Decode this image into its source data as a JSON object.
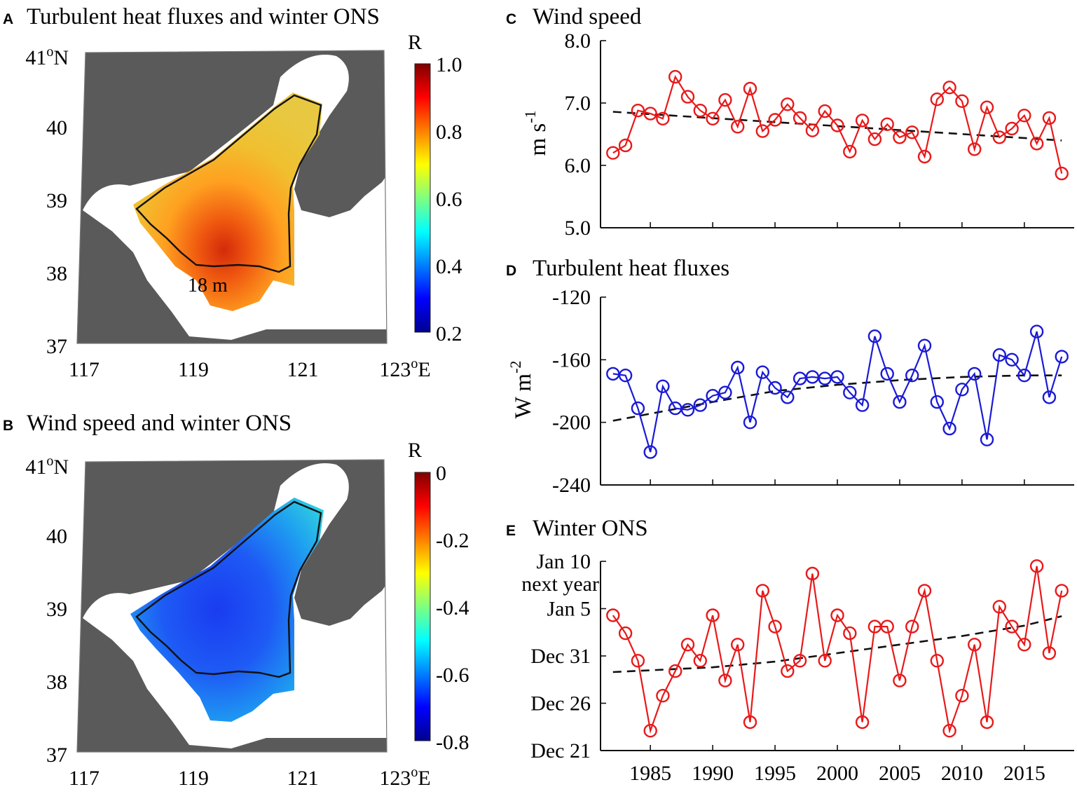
{
  "panels": {
    "A": {
      "letter": "A",
      "title": "Turbulent heat fluxes and winter ONS"
    },
    "B": {
      "letter": "B",
      "title": "Wind speed and winter ONS"
    },
    "C": {
      "letter": "C",
      "title": "Wind speed"
    },
    "D": {
      "letter": "D",
      "title": "Turbulent heat fluxes"
    },
    "E": {
      "letter": "E",
      "title": "Winter ONS"
    }
  },
  "maps": {
    "lon_ticks": [
      "117",
      "119",
      "121",
      "123"
    ],
    "lon_last_deg": "o",
    "lon_last_suffix": "E",
    "lat_ticks": [
      "40",
      "39",
      "38",
      "37"
    ],
    "lat_top": "41",
    "lat_top_deg": "o",
    "lat_top_suffix": "N",
    "contour_label": "18 m",
    "colors": {
      "land": "#5a5a5a",
      "contour": "#111111"
    }
  },
  "colorbars": {
    "A": {
      "label": "R",
      "ticks": [
        "1.0",
        "0.8",
        "0.6",
        "0.4",
        "0.2"
      ]
    },
    "B": {
      "label": "R",
      "ticks": [
        "0",
        "-0.2",
        "-0.4",
        "-0.6",
        "-0.8"
      ]
    }
  },
  "chart_data": [
    {
      "id": "C",
      "type": "line",
      "title": "Wind speed",
      "ylabel": "m s-1",
      "ylabel_main": "m s",
      "ylabel_exp": "-1",
      "ylim": [
        5.0,
        8.0
      ],
      "yticks": [
        "8.0",
        "7.0",
        "6.0",
        "5.0"
      ],
      "xlim": [
        1981,
        2019
      ],
      "x": [
        1982,
        1983,
        1984,
        1985,
        1986,
        1987,
        1988,
        1989,
        1990,
        1991,
        1992,
        1993,
        1994,
        1995,
        1996,
        1997,
        1998,
        1999,
        2000,
        2001,
        2002,
        2003,
        2004,
        2005,
        2006,
        2007,
        2008,
        2009,
        2010,
        2011,
        2012,
        2013,
        2014,
        2015,
        2016,
        2017,
        2018
      ],
      "series": [
        {
          "name": "Wind speed",
          "color": "#e8191a",
          "values": [
            6.2,
            6.32,
            6.88,
            6.83,
            6.75,
            7.42,
            7.1,
            6.88,
            6.75,
            7.05,
            6.62,
            7.23,
            6.55,
            6.73,
            6.98,
            6.76,
            6.56,
            6.87,
            6.64,
            6.22,
            6.72,
            6.42,
            6.66,
            6.45,
            6.53,
            6.14,
            7.06,
            7.25,
            7.03,
            6.26,
            6.93,
            6.45,
            6.59,
            6.8,
            6.35,
            6.76,
            5.87
          ]
        }
      ],
      "trend": {
        "x": [
          1982,
          2018
        ],
        "y": [
          6.86,
          6.4
        ]
      }
    },
    {
      "id": "D",
      "type": "line",
      "title": "Turbulent heat fluxes",
      "ylabel": "W m-2",
      "ylabel_main": "W m",
      "ylabel_exp": "-2",
      "ylim": [
        -240,
        -120
      ],
      "yticks": [
        "-120",
        "-160",
        "-200",
        "-240"
      ],
      "xlim": [
        1981,
        2019
      ],
      "x": [
        1982,
        1983,
        1984,
        1985,
        1986,
        1987,
        1988,
        1989,
        1990,
        1991,
        1992,
        1993,
        1994,
        1995,
        1996,
        1997,
        1998,
        1999,
        2000,
        2001,
        2002,
        2003,
        2004,
        2005,
        2006,
        2007,
        2008,
        2009,
        2010,
        2011,
        2012,
        2013,
        2014,
        2015,
        2016,
        2017,
        2018
      ],
      "series": [
        {
          "name": "Turbulent heat fluxes",
          "color": "#1a1ad6",
          "values": [
            -169,
            -170,
            -191,
            -219,
            -177,
            -191,
            -192,
            -189,
            -183,
            -181,
            -165,
            -200,
            -168,
            -178,
            -184,
            -172,
            -171,
            -172,
            -171,
            -181,
            -189,
            -145,
            -169,
            -187,
            -170,
            -151,
            -187,
            -204,
            -179,
            -169,
            -211,
            -157,
            -160,
            -170,
            -142,
            -184,
            -158
          ]
        }
      ],
      "trend": {
        "x": [
          1982,
          1990,
          1995,
          2000,
          2005,
          2010,
          2015,
          2018
        ],
        "y": [
          -199,
          -187,
          -180,
          -176,
          -173,
          -171,
          -170,
          -170
        ]
      }
    },
    {
      "id": "E",
      "type": "line",
      "title": "Winter ONS",
      "ylabel": "",
      "ylim": [
        0,
        20
      ],
      "yticks": [
        {
          "value": 20,
          "lines": [
            "Jan 10",
            "next year"
          ]
        },
        {
          "value": 15,
          "lines": [
            "Jan 5"
          ]
        },
        {
          "value": 10,
          "lines": [
            "Dec 31"
          ]
        },
        {
          "value": 5,
          "lines": [
            "Dec 26"
          ]
        },
        {
          "value": 0,
          "lines": [
            "Dec 21"
          ]
        }
      ],
      "xlim": [
        1981,
        2019
      ],
      "xticks": [
        "1985",
        "1990",
        "1995",
        "2000",
        "2005",
        "2010",
        "2015"
      ],
      "x": [
        1982,
        1983,
        1984,
        1985,
        1986,
        1987,
        1988,
        1989,
        1990,
        1991,
        1992,
        1993,
        1994,
        1995,
        1996,
        1997,
        1998,
        1999,
        2000,
        2001,
        2002,
        2003,
        2004,
        2005,
        2006,
        2007,
        2008,
        2009,
        2010,
        2011,
        2012,
        2013,
        2014,
        2015,
        2016,
        2017,
        2018
      ],
      "series": [
        {
          "name": "Winter ONS",
          "color": "#e8191a",
          "values": [
            14.3,
            12.4,
            9.5,
            2.1,
            5.8,
            8.4,
            11.2,
            9.5,
            14.3,
            7.4,
            11.2,
            3.0,
            16.9,
            13.1,
            8.4,
            9.5,
            18.7,
            9.5,
            14.3,
            12.4,
            3.0,
            13.1,
            13.1,
            7.4,
            13.1,
            16.9,
            9.5,
            2.1,
            5.8,
            11.2,
            3.0,
            15.2,
            13.1,
            11.2,
            19.5,
            10.3,
            16.9
          ]
        }
      ],
      "trend": {
        "x": [
          1982,
          1990,
          1995,
          2000,
          2005,
          2010,
          2015,
          2018
        ],
        "y": [
          8.3,
          8.8,
          9.4,
          10.3,
          11.2,
          12.1,
          13.2,
          14.2
        ]
      }
    }
  ]
}
